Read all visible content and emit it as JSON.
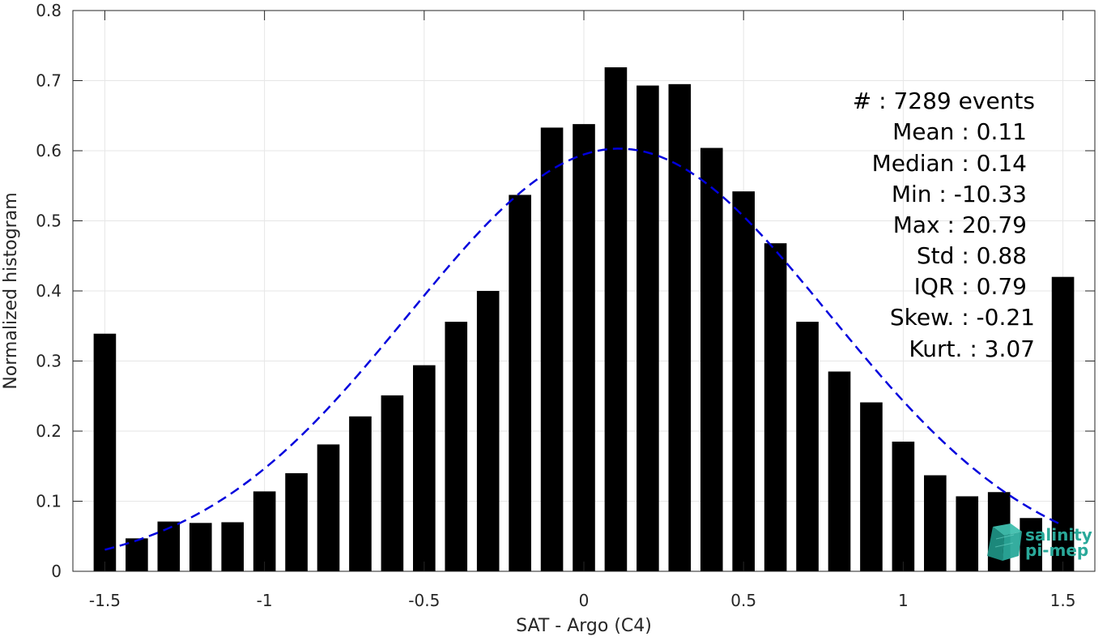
{
  "chart_data": {
    "type": "bar",
    "xlabel": "SAT - Argo (C4)",
    "ylabel": "Normalized histogram",
    "xlim": [
      -1.6,
      1.6
    ],
    "ylim": [
      0,
      0.8
    ],
    "xticks": [
      -1.5,
      -1,
      -0.5,
      0,
      0.5,
      1,
      1.5
    ],
    "xtick_labels": [
      "-1.5",
      "-1",
      "-0.5",
      "0",
      "0.5",
      "1",
      "1.5"
    ],
    "yticks": [
      0,
      0.1,
      0.2,
      0.3,
      0.4,
      0.5,
      0.6,
      0.7,
      0.8
    ],
    "ytick_labels": [
      "0",
      "0.1",
      "0.2",
      "0.3",
      "0.4",
      "0.5",
      "0.6",
      "0.7",
      "0.8"
    ],
    "grid": true,
    "bar_color": "#000000",
    "bar_width": 0.07,
    "bins": [
      -1.5,
      -1.4,
      -1.3,
      -1.2,
      -1.1,
      -1.0,
      -0.9,
      -0.8,
      -0.7,
      -0.6,
      -0.5,
      -0.4,
      -0.3,
      -0.2,
      -0.1,
      0.0,
      0.1,
      0.2,
      0.3,
      0.4,
      0.5,
      0.6,
      0.7,
      0.8,
      0.9,
      1.0,
      1.1,
      1.2,
      1.3,
      1.4,
      1.5
    ],
    "values": [
      0.339,
      0.047,
      0.071,
      0.069,
      0.07,
      0.114,
      0.14,
      0.181,
      0.221,
      0.251,
      0.294,
      0.356,
      0.4,
      0.537,
      0.633,
      0.638,
      0.719,
      0.693,
      0.695,
      0.604,
      0.542,
      0.468,
      0.356,
      0.285,
      0.241,
      0.185,
      0.137,
      0.107,
      0.113,
      0.076,
      0.42
    ],
    "fit": {
      "type": "gaussian",
      "line_style": "dashed",
      "color": "#0000dd",
      "mean": 0.11,
      "std": 0.66,
      "peak": 0.603,
      "x_range": [
        -1.5,
        1.5
      ]
    }
  },
  "stats": {
    "lines": [
      "#  : 7289 events",
      "Mean : 0.11",
      "Median : 0.14",
      "Min : -10.33",
      "Max : 20.79",
      "Std : 0.88",
      "IQR : 0.79",
      "Skew. : -0.21",
      "Kurt. : 3.07"
    ]
  },
  "logo": {
    "line1": "salinity",
    "line2": "pi-mep",
    "color": "#2aa99a"
  }
}
